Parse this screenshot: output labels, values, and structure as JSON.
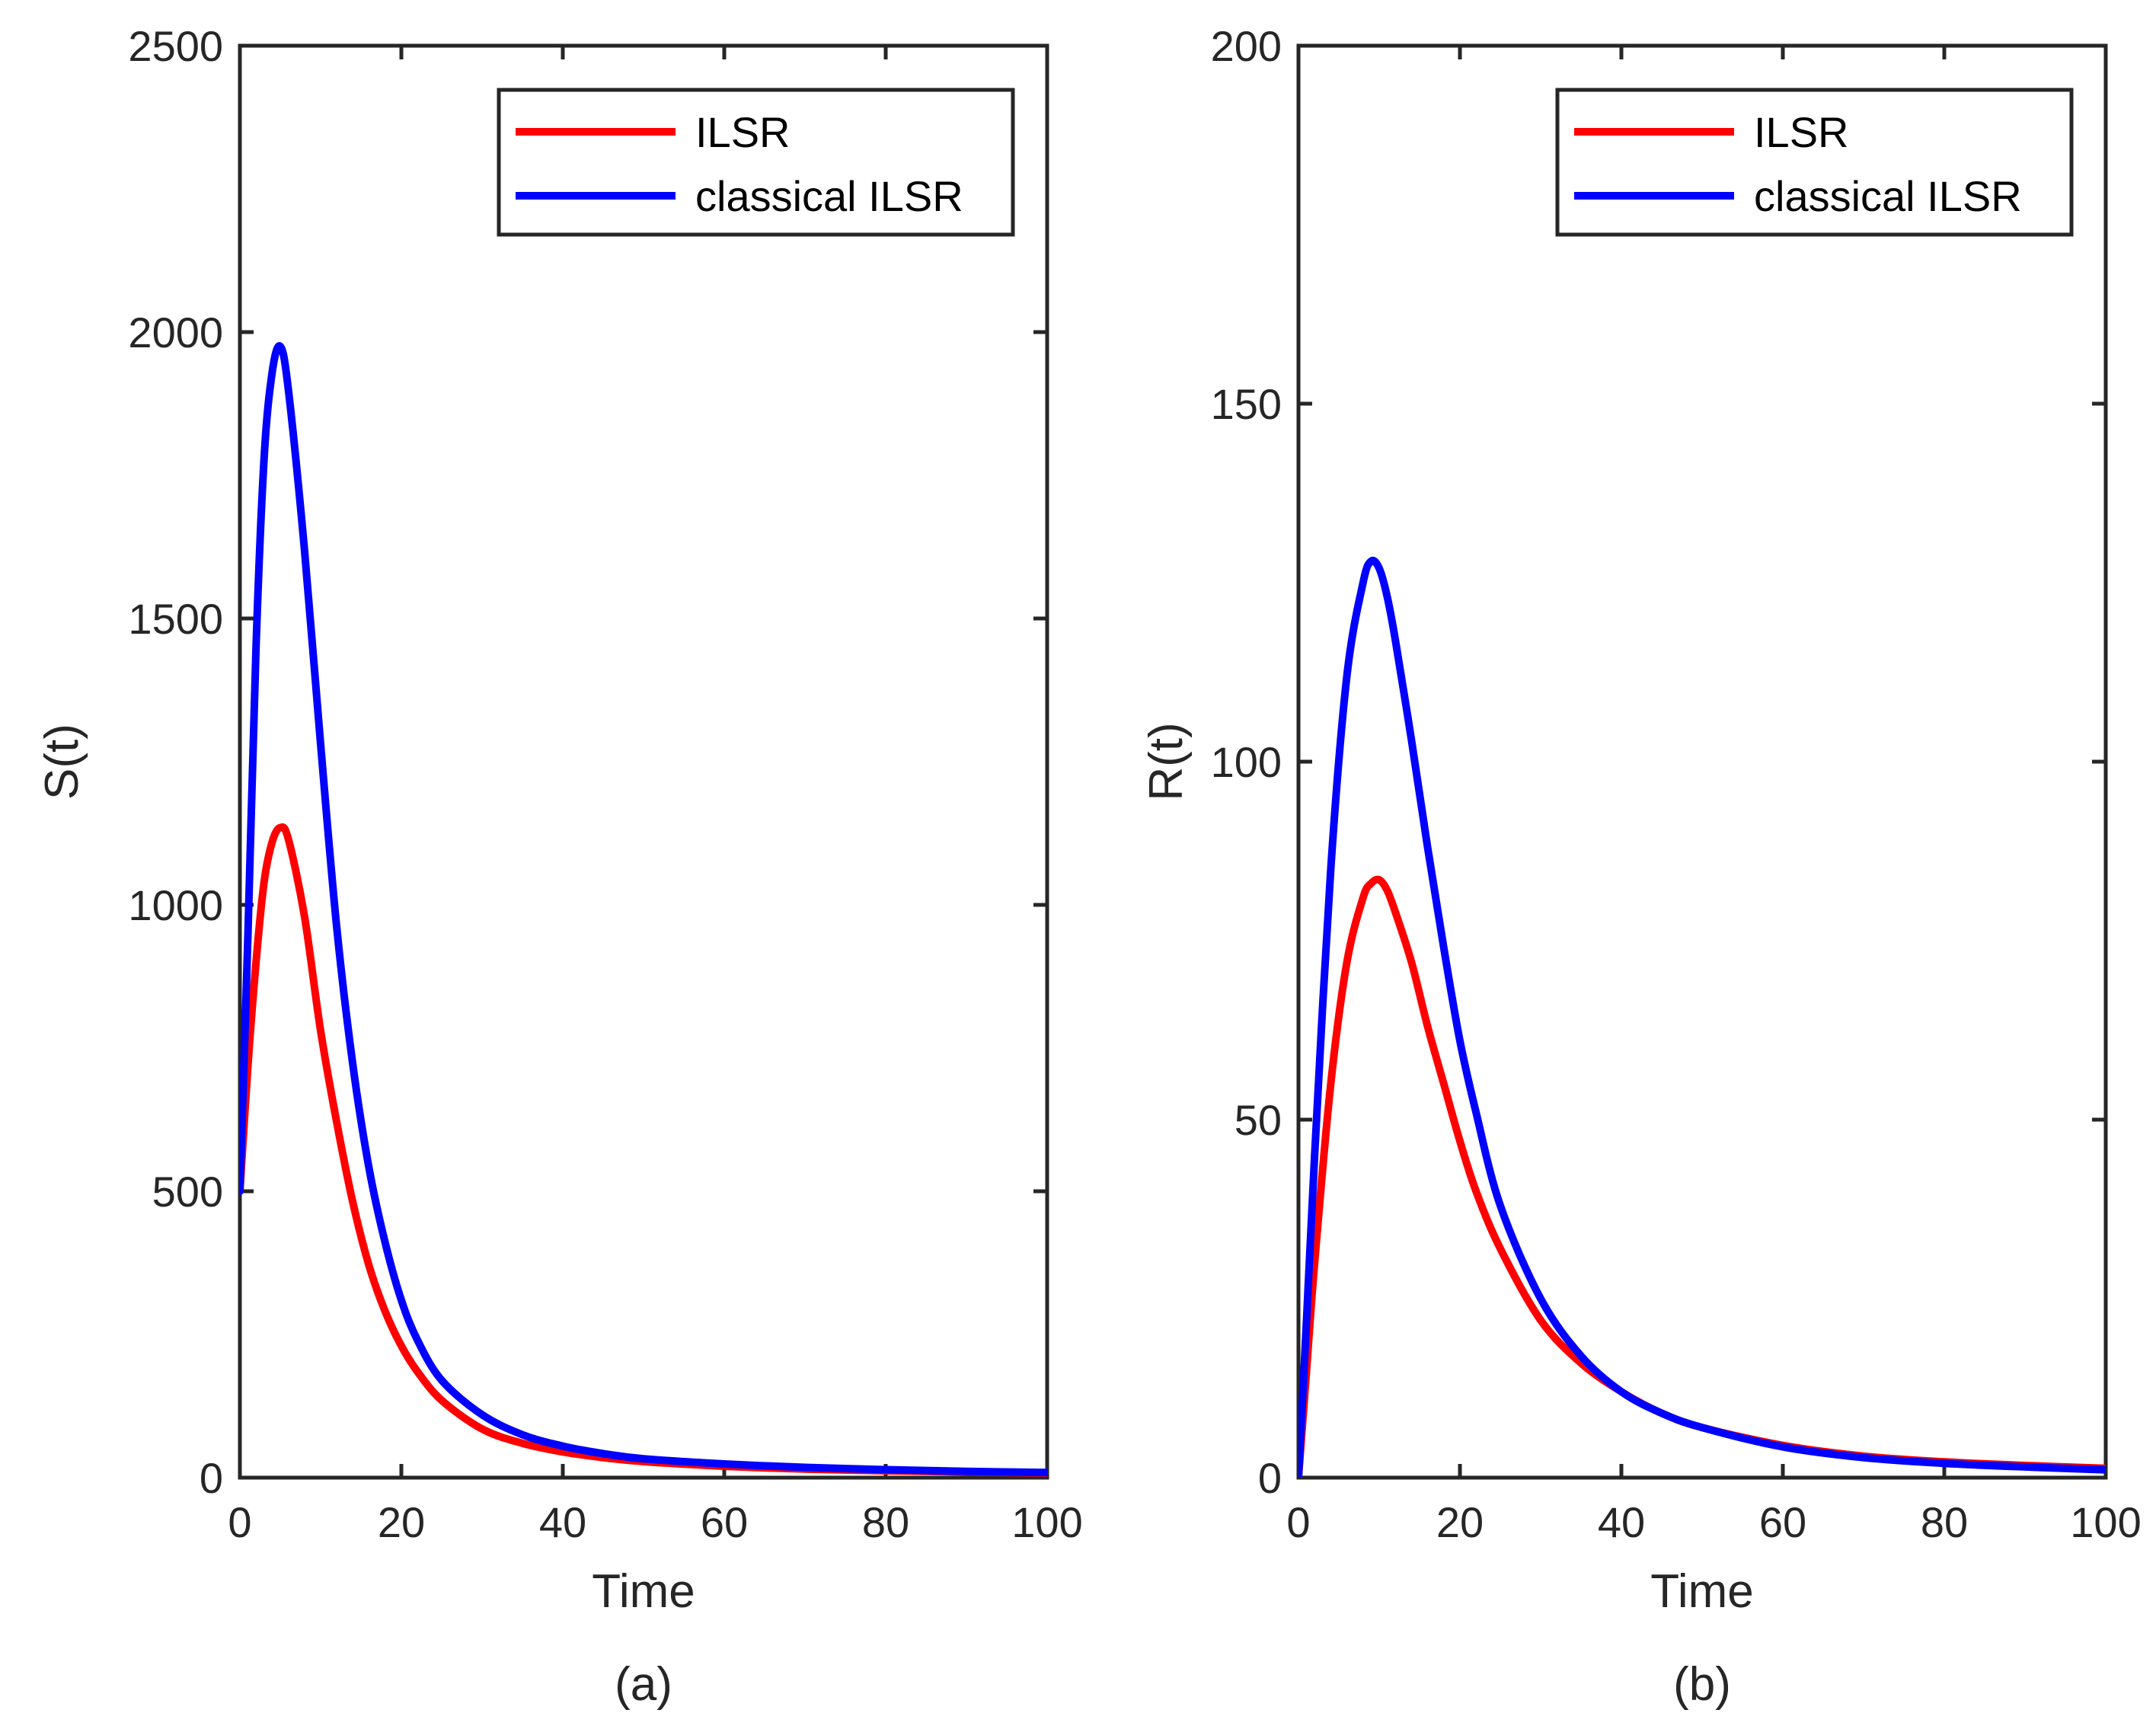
{
  "chart_data": [
    {
      "type": "line",
      "panel_caption": "(a)",
      "xlabel": "Time",
      "ylabel": "S(t)",
      "xlim": [
        0,
        100
      ],
      "ylim": [
        0,
        2500
      ],
      "xticks": [
        0,
        20,
        40,
        60,
        80,
        100
      ],
      "yticks": [
        0,
        500,
        1000,
        1500,
        2000,
        2500
      ],
      "grid": false,
      "legend_position": "top-right",
      "series": [
        {
          "name": "ILSR",
          "color": "#ff0000",
          "x": [
            0,
            1,
            2,
            3,
            4,
            5,
            6,
            8,
            10,
            12,
            14,
            16,
            18,
            20,
            22,
            25,
            30,
            35,
            40,
            45,
            50,
            60,
            70,
            80,
            90,
            100
          ],
          "y": [
            500,
            720,
            900,
            1040,
            1110,
            1135,
            1115,
            980,
            780,
            620,
            480,
            370,
            290,
            230,
            185,
            135,
            85,
            60,
            45,
            35,
            28,
            20,
            15,
            12,
            10,
            8
          ]
        },
        {
          "name": "classical ILSR",
          "color": "#0000ff",
          "x": [
            0,
            1,
            2,
            3,
            4,
            5,
            6,
            8,
            10,
            12,
            14,
            16,
            18,
            20,
            22,
            25,
            30,
            35,
            40,
            45,
            50,
            60,
            70,
            80,
            90,
            100
          ],
          "y": [
            500,
            950,
            1450,
            1780,
            1930,
            1975,
            1900,
            1620,
            1280,
            960,
            720,
            540,
            410,
            310,
            240,
            170,
            110,
            75,
            55,
            42,
            33,
            24,
            18,
            14,
            11,
            9
          ]
        }
      ]
    },
    {
      "type": "line",
      "panel_caption": "(b)",
      "xlabel": "Time",
      "ylabel": "R(t)",
      "xlim": [
        0,
        100
      ],
      "ylim": [
        0,
        200
      ],
      "xticks": [
        0,
        20,
        40,
        60,
        80,
        100
      ],
      "yticks": [
        0,
        50,
        100,
        150,
        200
      ],
      "grid": false,
      "legend_position": "top-right",
      "series": [
        {
          "name": "ILSR",
          "color": "#ff0000",
          "x": [
            0,
            1,
            2,
            4,
            6,
            8,
            9,
            10,
            11,
            12,
            14,
            16,
            18,
            20,
            22,
            25,
            30,
            35,
            40,
            45,
            50,
            60,
            70,
            80,
            90,
            100
          ],
          "y": [
            0,
            15,
            30,
            55,
            72,
            81,
            83,
            83.5,
            82,
            79,
            72,
            63,
            55,
            47,
            40,
            32,
            22,
            16,
            12,
            9,
            7,
            4.5,
            3,
            2.2,
            1.7,
            1.3
          ]
        },
        {
          "name": "classical ILSR",
          "color": "#0000ff",
          "x": [
            0,
            1,
            2,
            4,
            6,
            8,
            9,
            10,
            11,
            12,
            14,
            16,
            18,
            20,
            22,
            25,
            30,
            35,
            40,
            45,
            50,
            60,
            70,
            80,
            90,
            100
          ],
          "y": [
            0,
            22,
            45,
            85,
            112,
            125,
            128,
            127,
            123,
            117,
            103,
            88,
            74,
            61,
            51,
            38,
            25,
            17,
            12,
            9,
            7,
            4.3,
            2.8,
            2,
            1.5,
            1.1
          ]
        }
      ]
    }
  ]
}
